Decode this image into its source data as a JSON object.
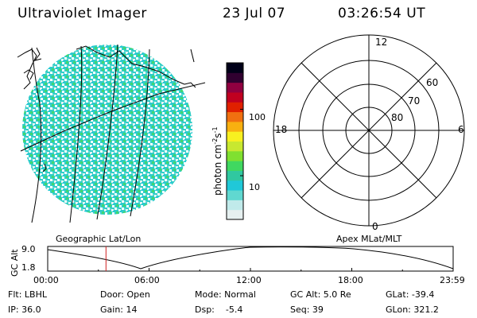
{
  "header": {
    "title": "Ultraviolet Imager",
    "date": "23 Jul 07",
    "time": "03:26:54 UT"
  },
  "colorbar": {
    "unit_label": "photon cm",
    "unit_exp1": "-2",
    "unit_s": "s",
    "unit_exp2": "-1",
    "tick_labels": [
      "100",
      "10"
    ],
    "tick_values": [
      100,
      10
    ],
    "range": [
      2.2,
      500
    ],
    "colors": [
      "#e6f0f0",
      "#c0eaea",
      "#60d8d0",
      "#20c8d8",
      "#30c8a0",
      "#40d860",
      "#80e030",
      "#c8e830",
      "#f8f020",
      "#f8b010",
      "#f07010",
      "#e02000",
      "#c00020",
      "#900040",
      "#300030",
      "#000018"
    ]
  },
  "polar_plot": {
    "clock_labels": [
      "12",
      "18",
      "6",
      "0"
    ],
    "lat_labels": [
      "60",
      "70",
      "80"
    ]
  },
  "map_labels": {
    "left": "Geographic Lat/Lon",
    "right": "Apex MLat/MLT"
  },
  "altitude_plot": {
    "ylabel": "GC Alt",
    "y_ticks": [
      "9.0",
      "1.8"
    ],
    "x_ticks": [
      "00:00",
      "06:00",
      "12:00",
      "18:00",
      "23:59"
    ],
    "current_time_hours": 3.45
  },
  "info": {
    "flt": "Flt: LBHL",
    "door": "Door: Open",
    "mode": "Mode: Normal",
    "gc_alt": "GC Alt: 5.0 Re",
    "glat": "GLat: -39.4",
    "ip": "IP: 36.0",
    "gain": "Gain: 14",
    "dsp": "Dsp:    -5.4",
    "seq": "Seq: 39",
    "glon": "GLon: 321.2"
  }
}
